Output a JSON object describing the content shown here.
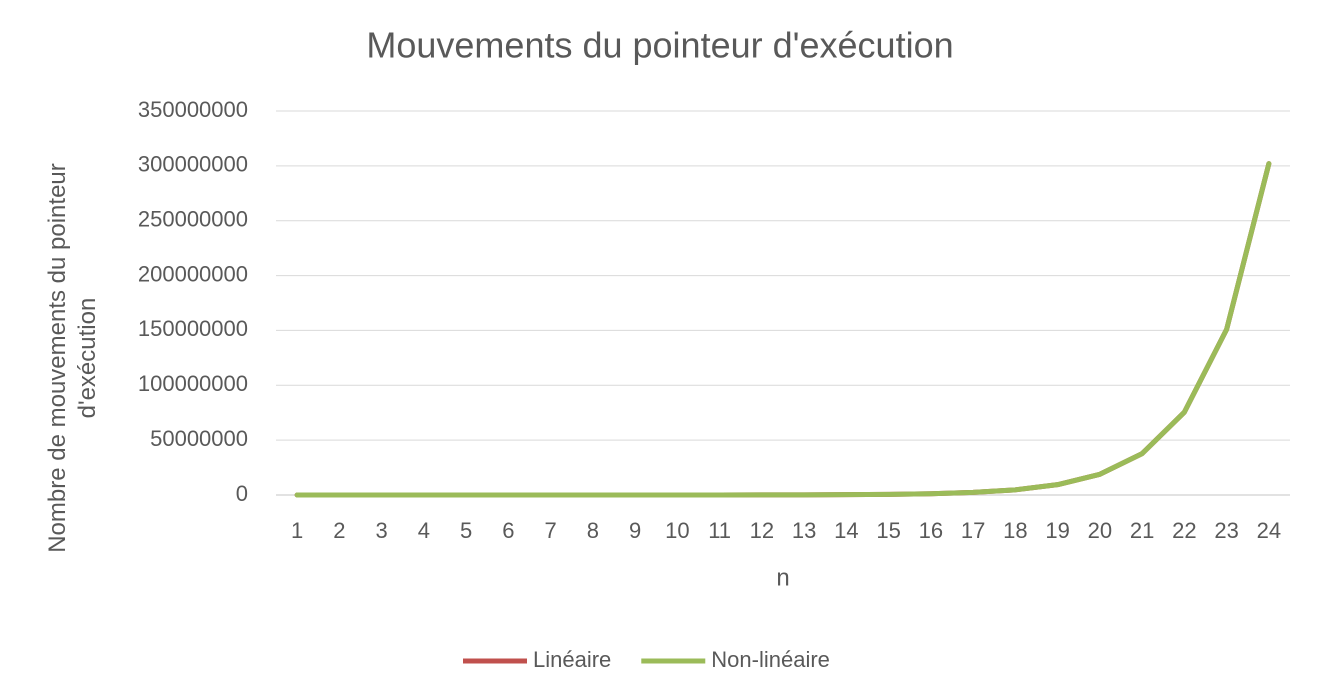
{
  "chart_data": {
    "type": "line",
    "title": "Mouvements du pointeur d'exécution",
    "x_label": "n",
    "y_label": "Nombre de mouvements du pointeur d'exécution",
    "categories": [
      1,
      2,
      3,
      4,
      5,
      6,
      7,
      8,
      9,
      10,
      11,
      12,
      13,
      14,
      15,
      16,
      17,
      18,
      19,
      20,
      21,
      22,
      23,
      24
    ],
    "series": [
      {
        "name": "Linéaire",
        "color": "#c0504d",
        "values": [
          36,
          72,
          144,
          288,
          576,
          1152,
          2304,
          4608,
          9216,
          18432,
          36864,
          73728,
          147456,
          294912,
          589824,
          1179648,
          2359296,
          4718592,
          9437184,
          18874368,
          37748736,
          75497472,
          150994944,
          301989888
        ]
      },
      {
        "name": "Non-linéaire",
        "color": "#9bbb59",
        "values": [
          36,
          72,
          144,
          288,
          576,
          1152,
          2304,
          4608,
          9216,
          18432,
          36864,
          73728,
          147456,
          294912,
          589824,
          1179648,
          2359296,
          4718592,
          9437184,
          18874368,
          37748736,
          75497472,
          150994944,
          301989888
        ]
      }
    ],
    "ylim": [
      0,
      350000000
    ],
    "yticks": [
      0,
      50000000,
      100000000,
      150000000,
      200000000,
      250000000,
      300000000,
      350000000
    ],
    "grid": true,
    "legend": "bottom"
  }
}
